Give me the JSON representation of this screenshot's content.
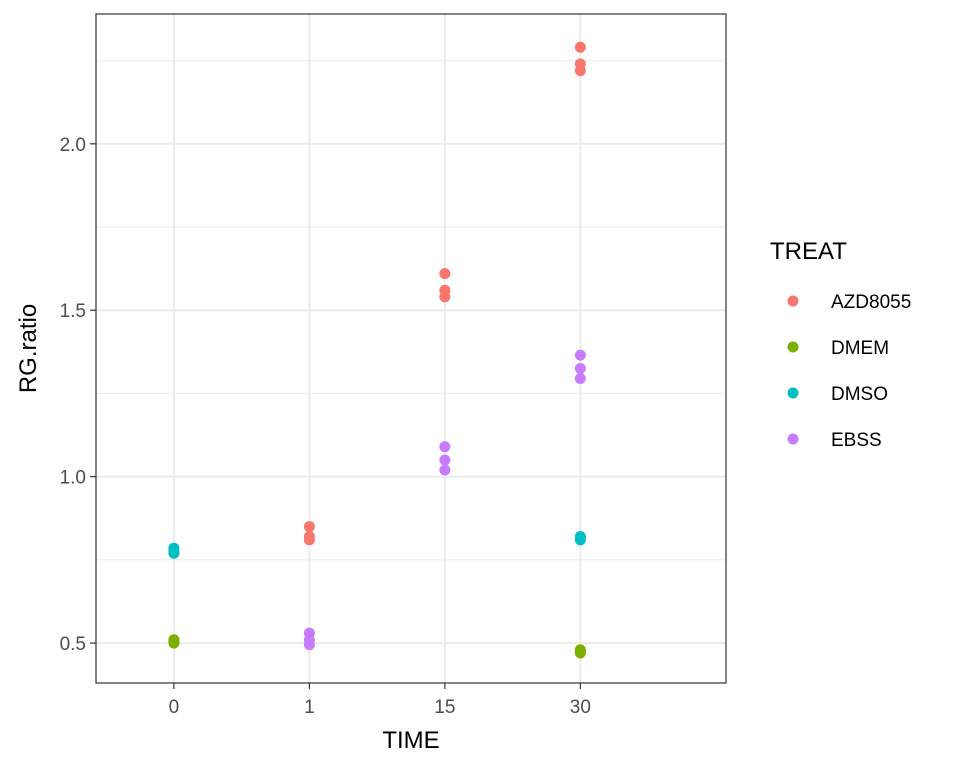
{
  "chart_data": {
    "type": "scatter",
    "title": "",
    "xlabel": "TIME",
    "ylabel": "RG.ratio",
    "x_categories": [
      "0",
      "1",
      "15",
      "30"
    ],
    "ylim": [
      0.38,
      2.39
    ],
    "y_ticks": [
      0.5,
      1.0,
      1.5,
      2.0
    ],
    "y_tick_labels": [
      "0.5",
      "1.0",
      "1.5",
      "2.0"
    ],
    "grid": true,
    "legend": {
      "title": "TREAT",
      "position": "right"
    },
    "series": [
      {
        "name": "AZD8055",
        "color": "#F8766D",
        "points": [
          {
            "x": "1",
            "y": 0.85
          },
          {
            "x": "1",
            "y": 0.82
          },
          {
            "x": "1",
            "y": 0.81
          },
          {
            "x": "15",
            "y": 1.61
          },
          {
            "x": "15",
            "y": 1.56
          },
          {
            "x": "15",
            "y": 1.54
          },
          {
            "x": "30",
            "y": 2.29
          },
          {
            "x": "30",
            "y": 2.24
          },
          {
            "x": "30",
            "y": 2.22
          }
        ]
      },
      {
        "name": "DMEM",
        "color": "#7CAE00",
        "points": [
          {
            "x": "0",
            "y": 0.51
          },
          {
            "x": "0",
            "y": 0.505
          },
          {
            "x": "0",
            "y": 0.5
          },
          {
            "x": "30",
            "y": 0.48
          },
          {
            "x": "30",
            "y": 0.475
          },
          {
            "x": "30",
            "y": 0.47
          }
        ]
      },
      {
        "name": "DMSO",
        "color": "#00BFC4",
        "points": [
          {
            "x": "0",
            "y": 0.785
          },
          {
            "x": "0",
            "y": 0.775
          },
          {
            "x": "0",
            "y": 0.77
          },
          {
            "x": "30",
            "y": 0.82
          },
          {
            "x": "30",
            "y": 0.815
          },
          {
            "x": "30",
            "y": 0.81
          }
        ]
      },
      {
        "name": "EBSS",
        "color": "#C77CFF",
        "points": [
          {
            "x": "1",
            "y": 0.53
          },
          {
            "x": "1",
            "y": 0.51
          },
          {
            "x": "1",
            "y": 0.495
          },
          {
            "x": "15",
            "y": 1.09
          },
          {
            "x": "15",
            "y": 1.05
          },
          {
            "x": "15",
            "y": 1.02
          },
          {
            "x": "30",
            "y": 1.365
          },
          {
            "x": "30",
            "y": 1.325
          },
          {
            "x": "30",
            "y": 1.295
          }
        ]
      }
    ]
  }
}
